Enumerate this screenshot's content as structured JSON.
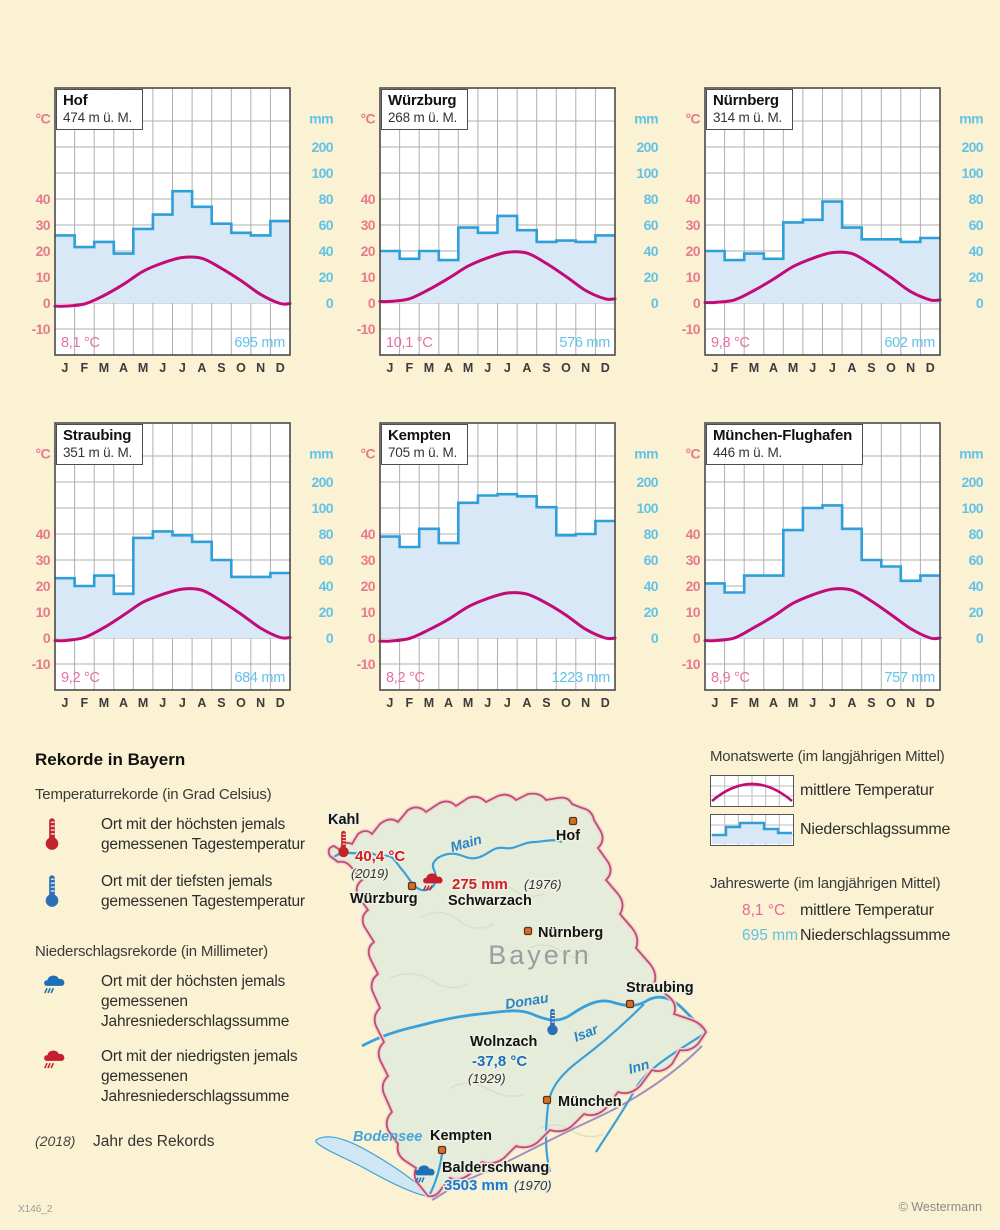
{
  "months": [
    "J",
    "F",
    "M",
    "A",
    "M",
    "J",
    "J",
    "A",
    "S",
    "O",
    "N",
    "D"
  ],
  "axis": {
    "temp_unit": "°C",
    "precip_unit": "mm",
    "temp_ticks": [
      40,
      30,
      20,
      10,
      0,
      -10
    ],
    "precip_ticks": [
      200,
      100,
      80,
      60,
      40,
      20,
      0
    ]
  },
  "chart_data": [
    {
      "type": "climate-diagram",
      "station": "Hof",
      "elevation": "474 m ü. M.",
      "annual_temp": "8,1 °C",
      "annual_precip": "695 mm",
      "temp": [
        -1.2,
        -0.4,
        2.9,
        7.2,
        12.2,
        15.4,
        17.5,
        17.2,
        13.3,
        8.6,
        3.3,
        -0.2
      ],
      "precip": [
        52,
        43,
        47,
        38,
        57,
        68,
        86,
        74,
        61,
        54,
        52,
        63
      ]
    },
    {
      "type": "climate-diagram",
      "station": "Würzburg",
      "elevation": "268 m ü. M.",
      "annual_temp": "10,1 °C",
      "annual_precip": "576 mm",
      "temp": [
        0.6,
        1.6,
        5.2,
        9.5,
        14.2,
        17.4,
        19.5,
        19.2,
        15.2,
        10.2,
        4.8,
        1.6
      ],
      "precip": [
        40,
        34,
        40,
        33,
        58,
        54,
        67,
        56,
        47,
        48,
        47,
        52
      ]
    },
    {
      "type": "climate-diagram",
      "station": "Nürnberg",
      "elevation": "314 m ü. M.",
      "annual_temp": "9,8 °C",
      "annual_precip": "602 mm",
      "temp": [
        0.2,
        1.2,
        4.8,
        9.2,
        14.0,
        17.2,
        19.4,
        19.0,
        14.8,
        9.8,
        4.4,
        1.2
      ],
      "precip": [
        40,
        33,
        38,
        34,
        62,
        64,
        78,
        58,
        49,
        49,
        47,
        50
      ]
    },
    {
      "type": "climate-diagram",
      "station": "Straubing",
      "elevation": "351 m ü. M.",
      "annual_temp": "9,2 °C",
      "annual_precip": "684 mm",
      "temp": [
        -1.0,
        0.2,
        4.0,
        8.8,
        13.8,
        16.8,
        18.8,
        18.4,
        14.2,
        9.2,
        3.8,
        0.2
      ],
      "precip": [
        46,
        40,
        48,
        34,
        77,
        82,
        79,
        74,
        60,
        47,
        47,
        50
      ]
    },
    {
      "type": "climate-diagram",
      "station": "Kempten",
      "elevation": "705 m ü. M.",
      "annual_temp": "8,2 °C",
      "annual_precip": "1223 mm",
      "temp": [
        -1.2,
        -0.2,
        3.2,
        7.2,
        12.0,
        15.2,
        17.3,
        16.9,
        13.4,
        8.8,
        3.4,
        0.0
      ],
      "precip": [
        78,
        70,
        84,
        73,
        120,
        148,
        153,
        145,
        103,
        79,
        80,
        90
      ]
    },
    {
      "type": "climate-diagram",
      "station": "München-Flughafen",
      "elevation": "446 m ü. M.",
      "annual_temp": "8,9 °C",
      "annual_precip": "757 mm",
      "temp": [
        -1.0,
        0.0,
        4.0,
        8.4,
        13.4,
        16.6,
        18.8,
        18.4,
        14.2,
        9.0,
        3.6,
        0.0
      ],
      "precip": [
        42,
        35,
        48,
        48,
        83,
        100,
        110,
        84,
        60,
        55,
        44,
        48
      ]
    }
  ],
  "legend_records": {
    "title": "Rekorde in Bayern",
    "temp_section": "Temperaturrekorde (in Grad Celsius)",
    "item_high_temp": "Ort mit der höchsten jemals gemessenen Tagestemperatur",
    "item_low_temp": "Ort mit der tiefsten jemals gemessenen Tagestemperatur",
    "precip_section": "Niederschlagsrekorde (in Millimeter)",
    "item_high_precip": "Ort mit der höchsten jemals gemessenen Jahresniederschlagssumme",
    "item_low_precip": "Ort mit der niedrigsten jemals gemessenen Jahresniederschlagssumme",
    "year_symbol": "(2018)",
    "year_text": "Jahr des Rekords"
  },
  "legend_values": {
    "monthly_title": "Monatswerte (im langjährigen Mittel)",
    "temp_label": "mittlere Temperatur",
    "precip_label": "Niederschlagssumme",
    "annual_title": "Jahreswerte (im langjährigen Mittel)",
    "annual_temp_example": "8,1 °C",
    "annual_temp_label": "mittlere Temperatur",
    "annual_precip_example": "695 mm",
    "annual_precip_label": "Niederschlagssumme"
  },
  "map": {
    "region_label": "Bayern",
    "rivers": [
      {
        "name": "Main"
      },
      {
        "name": "Donau"
      },
      {
        "name": "Isar"
      },
      {
        "name": "Inn"
      }
    ],
    "lake": {
      "name": "Bodensee"
    },
    "cities": [
      {
        "name": "Hof"
      },
      {
        "name": "Würzburg"
      },
      {
        "name": "Nürnberg"
      },
      {
        "name": "Straubing"
      },
      {
        "name": "München"
      },
      {
        "name": "Kempten"
      }
    ],
    "records": [
      {
        "place": "Kahl",
        "value": "40,4 °C",
        "year": "(2019)",
        "kind": "highest-temperature"
      },
      {
        "place": "Schwarzach",
        "value": "275 mm",
        "year": "(1976)",
        "kind": "lowest-precipitation"
      },
      {
        "place": "Wolnzach",
        "value": "-37,8 °C",
        "year": "(1929)",
        "kind": "lowest-temperature"
      },
      {
        "place": "Balderschwang",
        "value": "3503 mm",
        "year": "(1970)",
        "kind": "highest-precipitation"
      }
    ]
  },
  "footer": {
    "code": "X146_2",
    "copyright": "© Westermann"
  },
  "colors": {
    "background": "#FAF2D2",
    "temperature": "#C30B76",
    "precipitation": "#2E9FD8",
    "precipitation_fill": "#D8E8F6",
    "record_red": "#D02025",
    "record_blue": "#1D6FB8"
  }
}
